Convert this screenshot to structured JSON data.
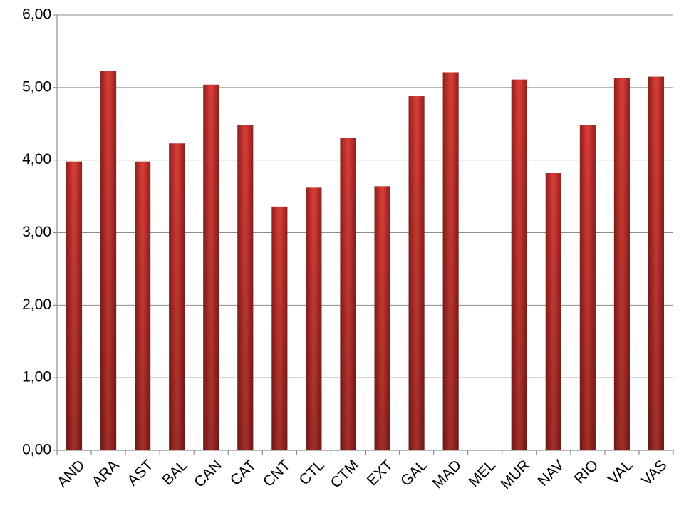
{
  "chart_data": {
    "type": "bar",
    "categories": [
      "AND",
      "ARA",
      "AST",
      "BAL",
      "CAN",
      "CAT",
      "CNT",
      "CTL",
      "CTM",
      "EXT",
      "GAL",
      "MAD",
      "MEL",
      "MUR",
      "NAV",
      "RIO",
      "VAL",
      "VAS"
    ],
    "values": [
      3.98,
      5.23,
      3.98,
      4.23,
      5.04,
      4.48,
      3.36,
      3.62,
      4.31,
      3.64,
      4.88,
      5.21,
      null,
      5.11,
      3.82,
      4.48,
      5.13,
      5.15
    ],
    "color": "#d63c36",
    "ylim": [
      0,
      6
    ],
    "yticks": [
      {
        "value": 0,
        "label": "0,00"
      },
      {
        "value": 1,
        "label": "1,00"
      },
      {
        "value": 2,
        "label": "2,00"
      },
      {
        "value": 3,
        "label": "3,00"
      },
      {
        "value": 4,
        "label": "4,00"
      },
      {
        "value": 5,
        "label": "5,00"
      },
      {
        "value": 6,
        "label": "6,00"
      }
    ],
    "grid": true
  }
}
